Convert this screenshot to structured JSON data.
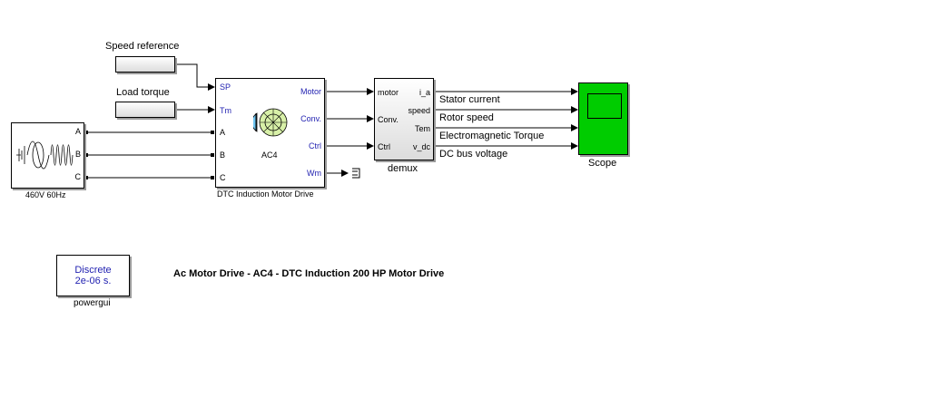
{
  "blocks": {
    "speed_ref": {
      "label": "Speed reference"
    },
    "load_torque": {
      "label": "Load torque"
    },
    "source": {
      "label": "460V 60Hz",
      "ports": [
        "A",
        "B",
        "C"
      ]
    },
    "drive": {
      "label": "DTC Induction Motor Drive",
      "name": "AC4",
      "in_ports": [
        "SP",
        "Tm",
        "A",
        "B",
        "C"
      ],
      "out_ports": [
        "Motor",
        "Conv.",
        "Ctrl",
        "Wm"
      ]
    },
    "demux": {
      "label": "demux",
      "in_ports": [
        "motor",
        "Conv.",
        "Ctrl"
      ],
      "out_ports": [
        "i_a",
        "speed",
        "Tem",
        "v_dc"
      ]
    },
    "scope": {
      "label": "Scope"
    },
    "powergui": {
      "label": "powergui",
      "line1": "Discrete",
      "line2": "2e-06 s."
    }
  },
  "signals": [
    "Stator current",
    "Rotor speed",
    "Electromagnetic Torque",
    "DC bus voltage"
  ],
  "title": "Ac Motor Drive - AC4 - DTC Induction 200 HP Motor Drive",
  "colors": {
    "scope_fill": "#00cc00",
    "port_blue": "#1f1fb0",
    "source_border": "#000000"
  }
}
